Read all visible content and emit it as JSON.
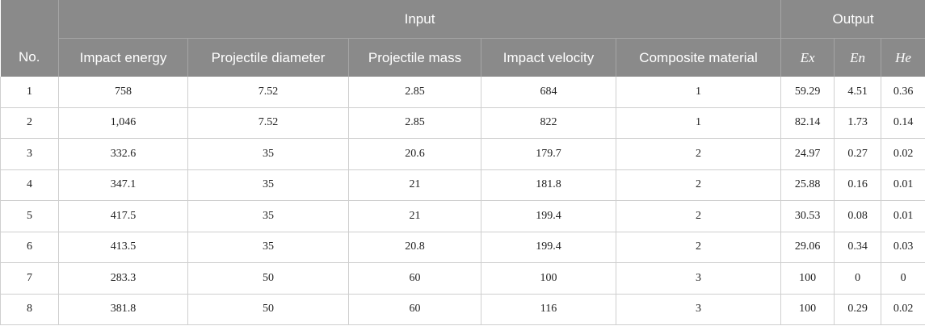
{
  "table": {
    "group_headers": [
      "Input",
      "Output"
    ],
    "columns": [
      "No.",
      "Impact energy",
      "Projectile diameter",
      "Projectile mass",
      "Impact velocity",
      "Composite material",
      "Ex",
      "En",
      "He"
    ],
    "rows": [
      [
        "1",
        "758",
        "7.52",
        "2.85",
        "684",
        "1",
        "59.29",
        "4.51",
        "0.36"
      ],
      [
        "2",
        "1,046",
        "7.52",
        "2.85",
        "822",
        "1",
        "82.14",
        "1.73",
        "0.14"
      ],
      [
        "3",
        "332.6",
        "35",
        "20.6",
        "179.7",
        "2",
        "24.97",
        "0.27",
        "0.02"
      ],
      [
        "4",
        "347.1",
        "35",
        "21",
        "181.8",
        "2",
        "25.88",
        "0.16",
        "0.01"
      ],
      [
        "5",
        "417.5",
        "35",
        "21",
        "199.4",
        "2",
        "30.53",
        "0.08",
        "0.01"
      ],
      [
        "6",
        "413.5",
        "35",
        "20.8",
        "199.4",
        "2",
        "29.06",
        "0.34",
        "0.03"
      ],
      [
        "7",
        "283.3",
        "50",
        "60",
        "100",
        "3",
        "100",
        "0",
        "0"
      ],
      [
        "8",
        "381.8",
        "50",
        "60",
        "116",
        "3",
        "100",
        "0.29",
        "0.02"
      ]
    ]
  }
}
